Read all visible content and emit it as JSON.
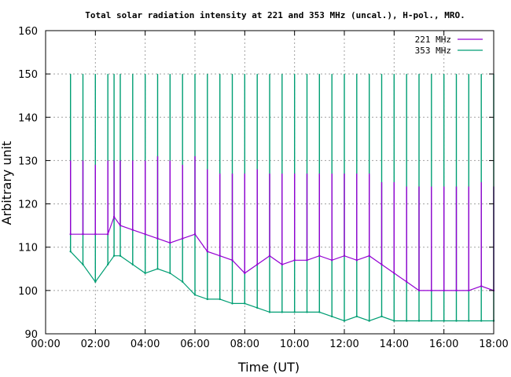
{
  "chart_data": {
    "type": "line",
    "title": "Total solar radiation intensity at 221 and 353 MHz (uncal.), H-pol., MRO.",
    "xlabel": "Time (UT)",
    "ylabel": "Arbitrary unit",
    "xlim": [
      "00:00",
      "18:00"
    ],
    "ylim": [
      90,
      160
    ],
    "x_ticks": [
      "00:00",
      "02:00",
      "04:00",
      "06:00",
      "08:00",
      "10:00",
      "12:00",
      "14:00",
      "16:00",
      "18:00"
    ],
    "y_ticks": [
      "90",
      "100",
      "110",
      "120",
      "130",
      "140",
      "150",
      "160"
    ],
    "grid": true,
    "legend_position": "top-right",
    "series": [
      {
        "name": "221 MHz",
        "color": "#9400d3",
        "x": [
          "01:00",
          "01:30",
          "02:00",
          "02:30",
          "02:45",
          "03:00",
          "03:30",
          "04:00",
          "04:30",
          "05:00",
          "05:30",
          "06:00",
          "06:30",
          "07:00",
          "07:30",
          "08:00",
          "08:30",
          "09:00",
          "09:30",
          "10:00",
          "10:30",
          "11:00",
          "11:30",
          "12:00",
          "12:30",
          "13:00",
          "13:30",
          "14:00",
          "14:30",
          "15:00",
          "15:30",
          "16:00",
          "16:30",
          "17:00",
          "17:30",
          "18:00"
        ],
        "values": [
          113,
          113,
          113,
          113,
          117,
          115,
          114,
          113,
          112,
          111,
          112,
          113,
          109,
          108,
          107,
          104,
          106,
          108,
          106,
          107,
          107,
          108,
          107,
          108,
          107,
          108,
          106,
          104,
          102,
          100,
          100,
          100,
          100,
          100,
          101,
          100
        ],
        "spike_values": [
          130,
          130,
          129,
          130,
          130,
          130,
          130,
          130,
          131,
          130,
          129,
          131,
          128,
          127,
          127,
          127,
          128,
          127,
          127,
          127,
          127,
          127,
          127,
          127,
          127,
          127,
          125,
          125,
          124,
          124,
          124,
          124,
          124,
          124,
          125,
          124
        ]
      },
      {
        "name": "353 MHz",
        "color": "#009e73",
        "x": [
          "01:00",
          "01:30",
          "02:00",
          "02:30",
          "02:45",
          "03:00",
          "03:30",
          "04:00",
          "04:30",
          "05:00",
          "05:30",
          "06:00",
          "06:30",
          "07:00",
          "07:30",
          "08:00",
          "08:30",
          "09:00",
          "09:30",
          "10:00",
          "10:30",
          "11:00",
          "11:30",
          "12:00",
          "12:30",
          "13:00",
          "13:30",
          "14:00",
          "14:30",
          "15:00",
          "15:30",
          "16:00",
          "16:30",
          "17:00",
          "17:30",
          "18:00"
        ],
        "values": [
          109,
          106,
          102,
          106,
          108,
          108,
          106,
          104,
          105,
          104,
          102,
          99,
          98,
          98,
          97,
          97,
          96,
          95,
          95,
          95,
          95,
          95,
          94,
          93,
          94,
          93,
          94,
          93,
          93,
          93,
          93,
          93,
          93,
          93,
          93,
          93
        ],
        "spike_values": [
          150,
          150,
          150,
          150,
          150,
          150,
          150,
          150,
          150,
          150,
          150,
          150,
          150,
          150,
          150,
          150,
          150,
          150,
          150,
          150,
          150,
          150,
          150,
          150,
          150,
          150,
          150,
          150,
          150,
          150,
          150,
          150,
          150,
          150,
          150,
          150
        ]
      }
    ]
  }
}
